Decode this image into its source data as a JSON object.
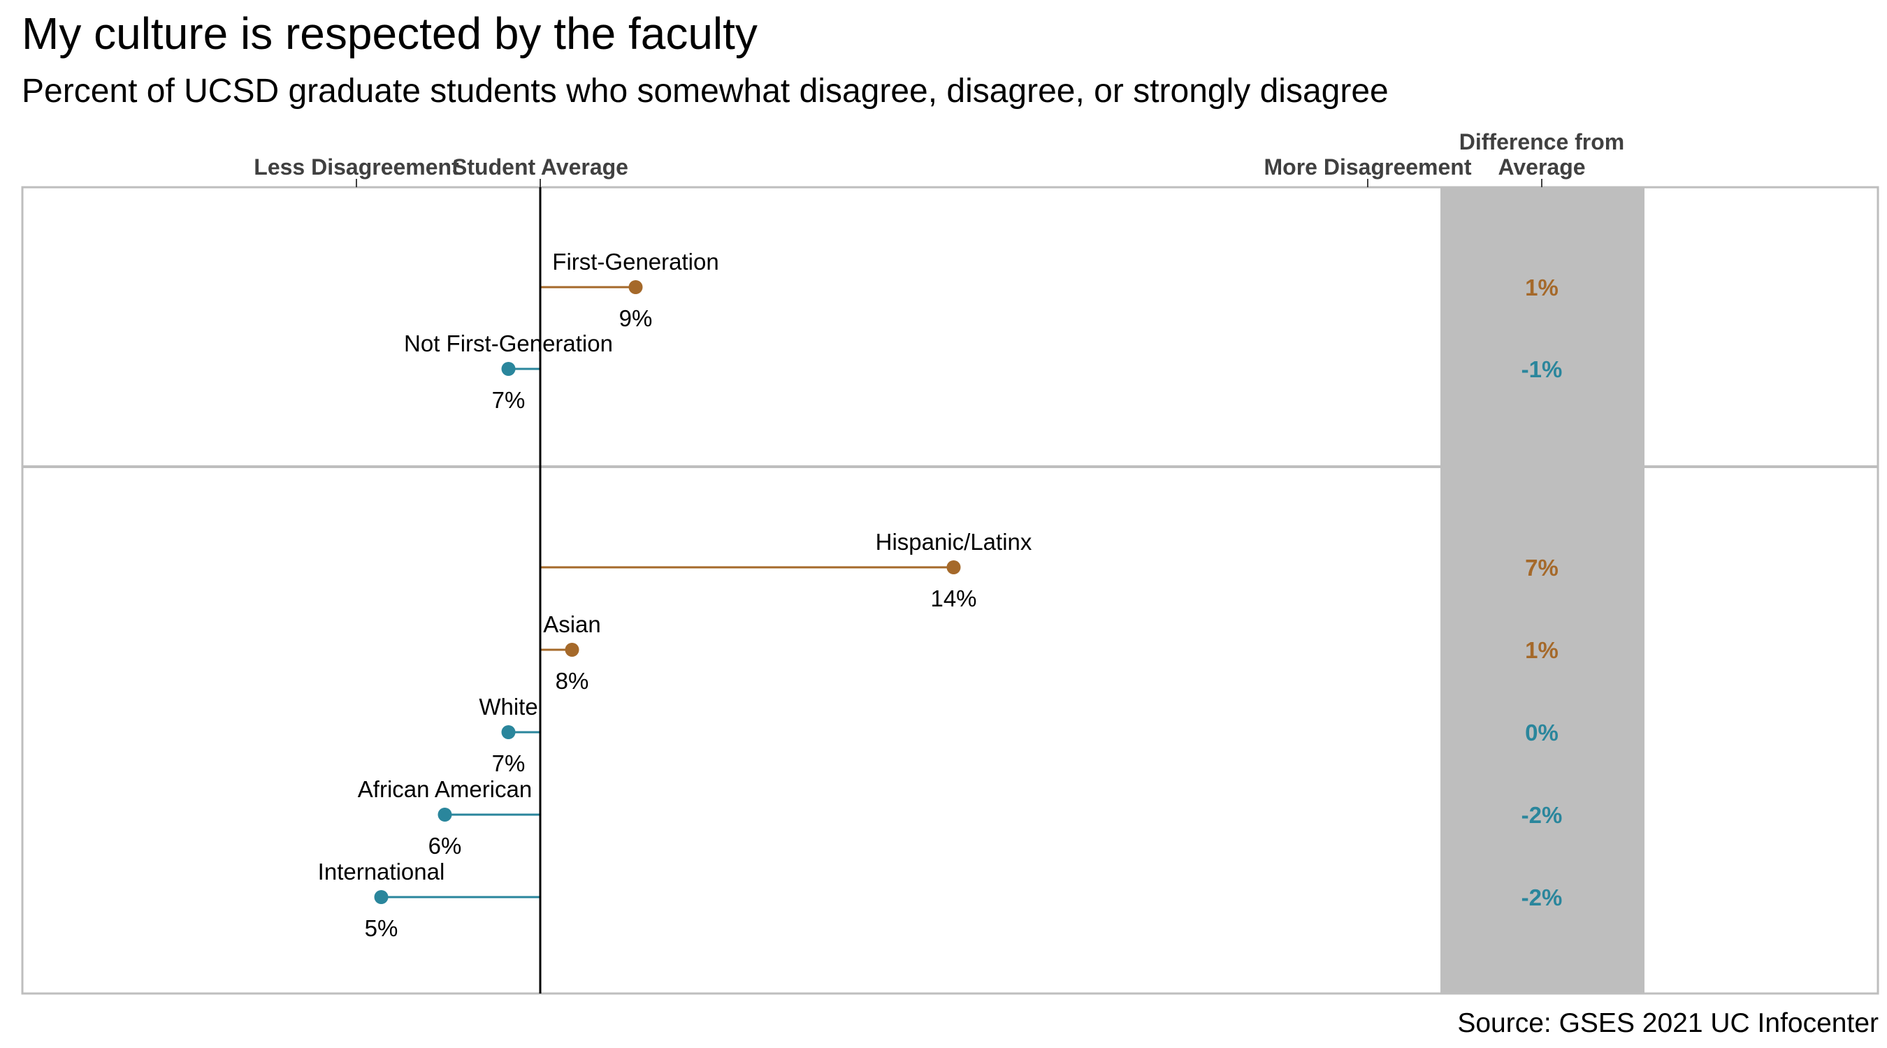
{
  "chart_data": {
    "type": "lollipop",
    "title": "My culture is respected by the faculty",
    "subtitle": "Percent of UCSD graduate students who somewhat disagree, disagree, or strongly disagree",
    "axis_labels": {
      "less": "Less Disagreement",
      "average": "Student Average",
      "more": "More Disagreement",
      "difference_line1": "Difference from",
      "difference_line2": "Average"
    },
    "source": "Source: GSES 2021 UC Infocenter",
    "student_average": 7.5,
    "colors": {
      "above": "#A5692A",
      "below": "#2A869C",
      "difference_band": "#BEBEBE",
      "panel_border": "#BEBEBE",
      "average_line": "#000000"
    },
    "panels": [
      {
        "rows": [
          {
            "group": "First-Generation",
            "value": 9,
            "value_label": "9%",
            "difference": "1%",
            "direction": "above"
          },
          {
            "group": "Not First-Generation",
            "value": 7,
            "value_label": "7%",
            "difference": "-1%",
            "direction": "below"
          }
        ]
      },
      {
        "rows": [
          {
            "group": "Hispanic/Latinx",
            "value": 14,
            "value_label": "14%",
            "difference": "7%",
            "direction": "above"
          },
          {
            "group": "Asian",
            "value": 8,
            "value_label": "8%",
            "difference": "1%",
            "direction": "above"
          },
          {
            "group": "White",
            "value": 7,
            "value_label": "7%",
            "difference": "0%",
            "direction": "below"
          },
          {
            "group": "African American",
            "value": 6,
            "value_label": "6%",
            "difference": "-2%",
            "direction": "below"
          },
          {
            "group": "International",
            "value": 5,
            "value_label": "5%",
            "difference": "-2%",
            "direction": "below"
          }
        ]
      }
    ]
  }
}
